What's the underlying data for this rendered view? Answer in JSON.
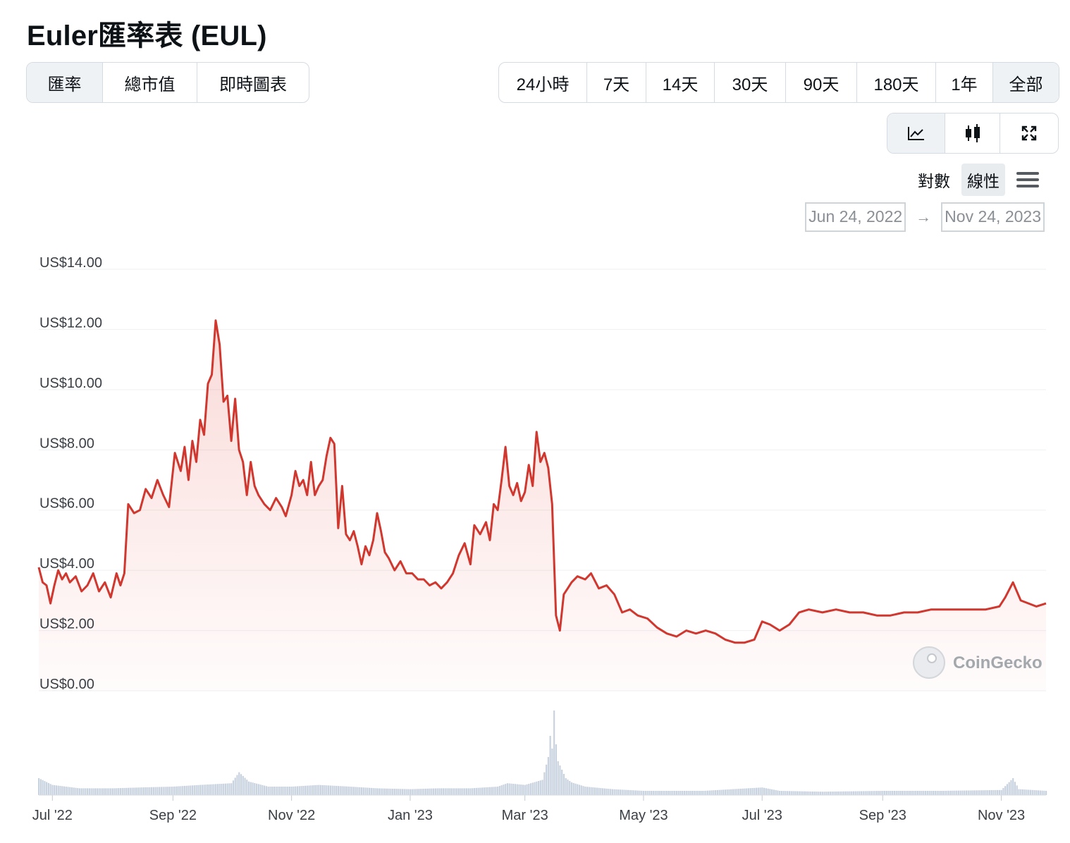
{
  "title": "Euler匯率表 (EUL)",
  "tabs": [
    {
      "label": "匯率",
      "active": true
    },
    {
      "label": "總市值",
      "active": false
    },
    {
      "label": "即時圖表",
      "active": false
    }
  ],
  "ranges": [
    {
      "label": "24小時",
      "active": false
    },
    {
      "label": "7天",
      "active": false
    },
    {
      "label": "14天",
      "active": false
    },
    {
      "label": "30天",
      "active": false
    },
    {
      "label": "90天",
      "active": false
    },
    {
      "label": "180天",
      "active": false
    },
    {
      "label": "1年",
      "active": false
    },
    {
      "label": "全部",
      "active": true
    }
  ],
  "tools": [
    {
      "icon": "line-chart-icon",
      "active": true
    },
    {
      "icon": "candlestick-icon",
      "active": false
    },
    {
      "icon": "fullscreen-icon",
      "active": false
    }
  ],
  "scale": {
    "log_label": "對數",
    "linear_label": "線性",
    "selected": "linear"
  },
  "date_range": {
    "from": "Jun 24, 2022",
    "to": "Nov 24, 2023",
    "arrow": "→"
  },
  "watermark": "CoinGecko",
  "colors": {
    "line": "#d0382f",
    "volume": "#c9d3e0",
    "grid": "#eef0f2",
    "accent_bg": "#eff2f5"
  },
  "chart_data": {
    "type": "line",
    "x_type": "date",
    "xlim": [
      "2022-06-24",
      "2023-11-24"
    ],
    "ylim": [
      0,
      14
    ],
    "y_ticks": [
      "US$0.00",
      "US$2.00",
      "US$4.00",
      "US$6.00",
      "US$8.00",
      "US$10.00",
      "US$12.00",
      "US$14.00"
    ],
    "y_tick_values": [
      0,
      2,
      4,
      6,
      8,
      10,
      12,
      14
    ],
    "x_ticks": [
      "Jul '22",
      "Sep '22",
      "Nov '22",
      "Jan '23",
      "Mar '23",
      "May '23",
      "Jul '23",
      "Sep '23",
      "Nov '23"
    ],
    "x_tick_dates": [
      "2022-07-01",
      "2022-09-01",
      "2022-11-01",
      "2023-01-01",
      "2023-03-01",
      "2023-05-01",
      "2023-07-01",
      "2023-09-01",
      "2023-11-01"
    ],
    "grid": true,
    "series": [
      {
        "values": [
          [
            "2022-06-24",
            4.1
          ],
          [
            "2022-06-26",
            3.6
          ],
          [
            "2022-06-28",
            3.5
          ],
          [
            "2022-06-30",
            2.9
          ],
          [
            "2022-07-02",
            3.5
          ],
          [
            "2022-07-04",
            4.0
          ],
          [
            "2022-07-06",
            3.7
          ],
          [
            "2022-07-08",
            3.9
          ],
          [
            "2022-07-10",
            3.6
          ],
          [
            "2022-07-13",
            3.8
          ],
          [
            "2022-07-16",
            3.3
          ],
          [
            "2022-07-19",
            3.5
          ],
          [
            "2022-07-22",
            3.9
          ],
          [
            "2022-07-25",
            3.3
          ],
          [
            "2022-07-28",
            3.6
          ],
          [
            "2022-07-31",
            3.1
          ],
          [
            "2022-08-03",
            3.9
          ],
          [
            "2022-08-05",
            3.5
          ],
          [
            "2022-08-07",
            3.9
          ],
          [
            "2022-08-09",
            6.2
          ],
          [
            "2022-08-12",
            5.9
          ],
          [
            "2022-08-15",
            6.0
          ],
          [
            "2022-08-18",
            6.7
          ],
          [
            "2022-08-21",
            6.4
          ],
          [
            "2022-08-24",
            7.0
          ],
          [
            "2022-08-27",
            6.5
          ],
          [
            "2022-08-30",
            6.1
          ],
          [
            "2022-09-02",
            7.9
          ],
          [
            "2022-09-05",
            7.3
          ],
          [
            "2022-09-07",
            8.1
          ],
          [
            "2022-09-09",
            7.0
          ],
          [
            "2022-09-11",
            8.3
          ],
          [
            "2022-09-13",
            7.6
          ],
          [
            "2022-09-15",
            9.0
          ],
          [
            "2022-09-17",
            8.5
          ],
          [
            "2022-09-19",
            10.2
          ],
          [
            "2022-09-21",
            10.5
          ],
          [
            "2022-09-23",
            12.3
          ],
          [
            "2022-09-25",
            11.5
          ],
          [
            "2022-09-27",
            9.6
          ],
          [
            "2022-09-29",
            9.8
          ],
          [
            "2022-10-01",
            8.3
          ],
          [
            "2022-10-03",
            9.7
          ],
          [
            "2022-10-05",
            8.0
          ],
          [
            "2022-10-07",
            7.6
          ],
          [
            "2022-10-09",
            6.5
          ],
          [
            "2022-10-11",
            7.6
          ],
          [
            "2022-10-13",
            6.8
          ],
          [
            "2022-10-15",
            6.5
          ],
          [
            "2022-10-18",
            6.2
          ],
          [
            "2022-10-21",
            6.0
          ],
          [
            "2022-10-24",
            6.4
          ],
          [
            "2022-10-27",
            6.1
          ],
          [
            "2022-10-29",
            5.8
          ],
          [
            "2022-11-01",
            6.5
          ],
          [
            "2022-11-03",
            7.3
          ],
          [
            "2022-11-05",
            6.8
          ],
          [
            "2022-11-07",
            7.0
          ],
          [
            "2022-11-09",
            6.5
          ],
          [
            "2022-11-11",
            7.6
          ],
          [
            "2022-11-13",
            6.5
          ],
          [
            "2022-11-15",
            6.8
          ],
          [
            "2022-11-17",
            7.0
          ],
          [
            "2022-11-19",
            7.8
          ],
          [
            "2022-11-21",
            8.4
          ],
          [
            "2022-11-23",
            8.2
          ],
          [
            "2022-11-25",
            5.4
          ],
          [
            "2022-11-27",
            6.8
          ],
          [
            "2022-11-29",
            5.2
          ],
          [
            "2022-12-01",
            5.0
          ],
          [
            "2022-12-03",
            5.3
          ],
          [
            "2022-12-05",
            4.8
          ],
          [
            "2022-12-07",
            4.2
          ],
          [
            "2022-12-09",
            4.8
          ],
          [
            "2022-12-11",
            4.5
          ],
          [
            "2022-12-13",
            5.0
          ],
          [
            "2022-12-15",
            5.9
          ],
          [
            "2022-12-17",
            5.3
          ],
          [
            "2022-12-19",
            4.6
          ],
          [
            "2022-12-21",
            4.4
          ],
          [
            "2022-12-24",
            4.0
          ],
          [
            "2022-12-27",
            4.3
          ],
          [
            "2022-12-30",
            3.9
          ],
          [
            "2023-01-02",
            3.9
          ],
          [
            "2023-01-05",
            3.7
          ],
          [
            "2023-01-08",
            3.7
          ],
          [
            "2023-01-11",
            3.5
          ],
          [
            "2023-01-14",
            3.6
          ],
          [
            "2023-01-17",
            3.4
          ],
          [
            "2023-01-20",
            3.6
          ],
          [
            "2023-01-23",
            3.9
          ],
          [
            "2023-01-26",
            4.5
          ],
          [
            "2023-01-29",
            4.9
          ],
          [
            "2023-02-01",
            4.2
          ],
          [
            "2023-02-03",
            5.5
          ],
          [
            "2023-02-06",
            5.2
          ],
          [
            "2023-02-09",
            5.6
          ],
          [
            "2023-02-11",
            5.0
          ],
          [
            "2023-02-13",
            6.2
          ],
          [
            "2023-02-15",
            6.0
          ],
          [
            "2023-02-17",
            7.0
          ],
          [
            "2023-02-19",
            8.1
          ],
          [
            "2023-02-21",
            6.8
          ],
          [
            "2023-02-23",
            6.5
          ],
          [
            "2023-02-25",
            6.9
          ],
          [
            "2023-02-27",
            6.3
          ],
          [
            "2023-03-01",
            6.6
          ],
          [
            "2023-03-03",
            7.5
          ],
          [
            "2023-03-05",
            6.8
          ],
          [
            "2023-03-07",
            8.6
          ],
          [
            "2023-03-09",
            7.6
          ],
          [
            "2023-03-11",
            7.9
          ],
          [
            "2023-03-13",
            7.4
          ],
          [
            "2023-03-15",
            6.2
          ],
          [
            "2023-03-17",
            2.5
          ],
          [
            "2023-03-19",
            2.0
          ],
          [
            "2023-03-21",
            3.2
          ],
          [
            "2023-03-23",
            3.4
          ],
          [
            "2023-03-25",
            3.6
          ],
          [
            "2023-03-28",
            3.8
          ],
          [
            "2023-04-01",
            3.7
          ],
          [
            "2023-04-04",
            3.9
          ],
          [
            "2023-04-08",
            3.4
          ],
          [
            "2023-04-12",
            3.5
          ],
          [
            "2023-04-16",
            3.2
          ],
          [
            "2023-04-20",
            2.6
          ],
          [
            "2023-04-24",
            2.7
          ],
          [
            "2023-04-28",
            2.5
          ],
          [
            "2023-05-03",
            2.4
          ],
          [
            "2023-05-08",
            2.1
          ],
          [
            "2023-05-13",
            1.9
          ],
          [
            "2023-05-18",
            1.8
          ],
          [
            "2023-05-23",
            2.0
          ],
          [
            "2023-05-28",
            1.9
          ],
          [
            "2023-06-02",
            2.0
          ],
          [
            "2023-06-07",
            1.9
          ],
          [
            "2023-06-12",
            1.7
          ],
          [
            "2023-06-17",
            1.6
          ],
          [
            "2023-06-22",
            1.6
          ],
          [
            "2023-06-27",
            1.7
          ],
          [
            "2023-07-01",
            2.3
          ],
          [
            "2023-07-05",
            2.2
          ],
          [
            "2023-07-10",
            2.0
          ],
          [
            "2023-07-15",
            2.2
          ],
          [
            "2023-07-20",
            2.6
          ],
          [
            "2023-07-25",
            2.7
          ],
          [
            "2023-08-01",
            2.6
          ],
          [
            "2023-08-08",
            2.7
          ],
          [
            "2023-08-15",
            2.6
          ],
          [
            "2023-08-22",
            2.6
          ],
          [
            "2023-08-29",
            2.5
          ],
          [
            "2023-09-05",
            2.5
          ],
          [
            "2023-09-12",
            2.6
          ],
          [
            "2023-09-19",
            2.6
          ],
          [
            "2023-09-26",
            2.7
          ],
          [
            "2023-10-03",
            2.7
          ],
          [
            "2023-10-10",
            2.7
          ],
          [
            "2023-10-17",
            2.7
          ],
          [
            "2023-10-24",
            2.7
          ],
          [
            "2023-10-31",
            2.8
          ],
          [
            "2023-11-03",
            3.1
          ],
          [
            "2023-11-07",
            3.6
          ],
          [
            "2023-11-11",
            3.0
          ],
          [
            "2023-11-15",
            2.9
          ],
          [
            "2023-11-19",
            2.8
          ],
          [
            "2023-11-24",
            2.9
          ]
        ]
      }
    ],
    "volume": [
      [
        "2022-06-24",
        0.2
      ],
      [
        "2022-07-01",
        0.12
      ],
      [
        "2022-07-15",
        0.08
      ],
      [
        "2022-08-01",
        0.08
      ],
      [
        "2022-08-15",
        0.09
      ],
      [
        "2022-09-01",
        0.1
      ],
      [
        "2022-09-15",
        0.12
      ],
      [
        "2022-10-01",
        0.14
      ],
      [
        "2022-10-05",
        0.27
      ],
      [
        "2022-10-10",
        0.16
      ],
      [
        "2022-10-20",
        0.1
      ],
      [
        "2022-11-01",
        0.1
      ],
      [
        "2022-11-15",
        0.12
      ],
      [
        "2022-12-01",
        0.1
      ],
      [
        "2022-12-15",
        0.08
      ],
      [
        "2023-01-01",
        0.07
      ],
      [
        "2023-01-15",
        0.08
      ],
      [
        "2023-02-01",
        0.08
      ],
      [
        "2023-02-15",
        0.1
      ],
      [
        "2023-02-20",
        0.14
      ],
      [
        "2023-03-01",
        0.12
      ],
      [
        "2023-03-10",
        0.18
      ],
      [
        "2023-03-13",
        0.45
      ],
      [
        "2023-03-14",
        0.7
      ],
      [
        "2023-03-15",
        0.55
      ],
      [
        "2023-03-16",
        1.0
      ],
      [
        "2023-03-17",
        0.6
      ],
      [
        "2023-03-18",
        0.4
      ],
      [
        "2023-03-20",
        0.3
      ],
      [
        "2023-03-22",
        0.2
      ],
      [
        "2023-03-25",
        0.15
      ],
      [
        "2023-04-01",
        0.1
      ],
      [
        "2023-04-15",
        0.07
      ],
      [
        "2023-05-01",
        0.05
      ],
      [
        "2023-06-01",
        0.05
      ],
      [
        "2023-07-01",
        0.09
      ],
      [
        "2023-07-10",
        0.05
      ],
      [
        "2023-08-01",
        0.04
      ],
      [
        "2023-09-01",
        0.05
      ],
      [
        "2023-10-01",
        0.05
      ],
      [
        "2023-11-01",
        0.06
      ],
      [
        "2023-11-07",
        0.2
      ],
      [
        "2023-11-10",
        0.07
      ],
      [
        "2023-11-24",
        0.05
      ]
    ]
  }
}
